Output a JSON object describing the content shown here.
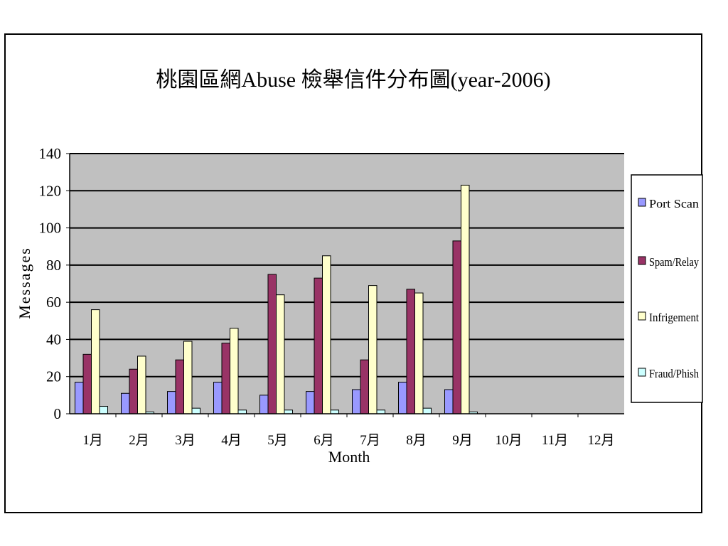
{
  "chart_data": {
    "type": "bar",
    "title": "桃園區網Abuse 檢舉信件分布圖(year-2006)",
    "xlabel": "Month",
    "ylabel": "Messages",
    "ylim": [
      0,
      140
    ],
    "yticks": [
      0,
      20,
      40,
      60,
      80,
      100,
      120,
      140
    ],
    "grid": true,
    "legend_position": "right",
    "categories": [
      "1月",
      "2月",
      "3月",
      "4月",
      "5月",
      "6月",
      "7月",
      "8月",
      "9月",
      "10月",
      "11月",
      "12月"
    ],
    "series": [
      {
        "name": "Port Scan",
        "color": "#9999ff",
        "values": [
          17,
          11,
          12,
          17,
          10,
          12,
          13,
          17,
          13,
          0,
          0,
          0
        ]
      },
      {
        "name": "Spam/Relay",
        "color": "#993366",
        "values": [
          32,
          24,
          29,
          38,
          75,
          73,
          29,
          67,
          93,
          0,
          0,
          0
        ]
      },
      {
        "name": "Infrigement",
        "color": "#ffffcc",
        "values": [
          56,
          31,
          39,
          46,
          64,
          85,
          69,
          65,
          123,
          0,
          0,
          0
        ]
      },
      {
        "name": "Fraud/Phish",
        "color": "#ccffff",
        "values": [
          4,
          1,
          3,
          2,
          2,
          2,
          2,
          3,
          1,
          0,
          0,
          0
        ]
      }
    ],
    "plot_background": "#c0c0c0"
  }
}
